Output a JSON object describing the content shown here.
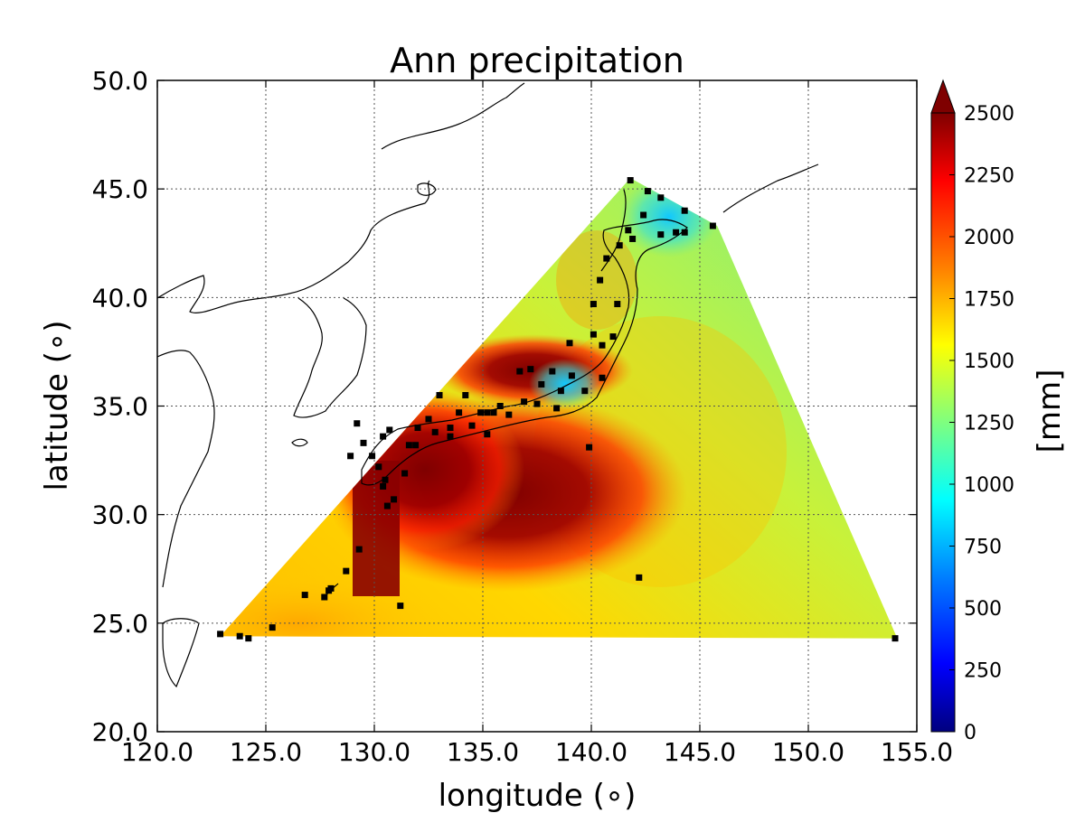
{
  "chart_data": {
    "type": "heatmap",
    "title": "Ann precipitation",
    "xlabel": "longitude (∘)",
    "ylabel": "latitude (∘)",
    "xlim": [
      120,
      155
    ],
    "ylim": [
      20,
      50
    ],
    "x_ticks": [
      "120.0",
      "125.0",
      "130.0",
      "135.0",
      "140.0",
      "145.0",
      "150.0",
      "155.0"
    ],
    "y_ticks": [
      "20.0",
      "25.0",
      "30.0",
      "35.0",
      "40.0",
      "45.0",
      "50.0"
    ],
    "x_tick_values": [
      120,
      125,
      130,
      135,
      140,
      145,
      150,
      155
    ],
    "y_tick_values": [
      20,
      25,
      30,
      35,
      40,
      45,
      50
    ],
    "grid": true,
    "colorbar": {
      "label": "[mm]",
      "min": 0,
      "max": 2500,
      "ticks": [
        "0",
        "250",
        "500",
        "750",
        "1000",
        "1250",
        "1500",
        "1750",
        "2000",
        "2250",
        "2500"
      ],
      "tick_values": [
        0,
        250,
        500,
        750,
        1000,
        1250,
        1500,
        1750,
        2000,
        2250,
        2500
      ],
      "extend": "max",
      "colormap": "jet",
      "colormap_stops": [
        "#00007f",
        "#0000ff",
        "#007fff",
        "#00ffff",
        "#7fff7f",
        "#ffff00",
        "#ff7f00",
        "#ff0000",
        "#7f0000"
      ]
    },
    "interpolated_domain_lonlat": [
      [
        122.9,
        24.4
      ],
      [
        141.8,
        45.5
      ],
      [
        145.8,
        43.3
      ],
      [
        154.1,
        24.3
      ]
    ],
    "stations_lonlat": [
      [
        122.9,
        24.5
      ],
      [
        123.8,
        24.4
      ],
      [
        124.2,
        24.3
      ],
      [
        125.3,
        24.8
      ],
      [
        126.8,
        26.3
      ],
      [
        127.7,
        26.2
      ],
      [
        127.9,
        26.5
      ],
      [
        128.0,
        26.6
      ],
      [
        128.7,
        27.4
      ],
      [
        129.3,
        28.4
      ],
      [
        128.9,
        32.7
      ],
      [
        129.2,
        34.2
      ],
      [
        129.5,
        33.3
      ],
      [
        129.9,
        32.7
      ],
      [
        130.2,
        32.2
      ],
      [
        130.4,
        31.3
      ],
      [
        130.5,
        31.6
      ],
      [
        130.6,
        30.4
      ],
      [
        130.9,
        30.7
      ],
      [
        130.4,
        33.6
      ],
      [
        130.7,
        33.9
      ],
      [
        131.2,
        25.8
      ],
      [
        131.4,
        31.9
      ],
      [
        131.6,
        33.2
      ],
      [
        131.9,
        33.2
      ],
      [
        132.0,
        34.0
      ],
      [
        132.5,
        34.4
      ],
      [
        132.8,
        33.8
      ],
      [
        133.0,
        35.5
      ],
      [
        133.5,
        33.6
      ],
      [
        133.5,
        34.0
      ],
      [
        133.9,
        34.7
      ],
      [
        134.2,
        35.5
      ],
      [
        134.5,
        34.1
      ],
      [
        134.9,
        34.7
      ],
      [
        135.2,
        34.7
      ],
      [
        135.5,
        34.7
      ],
      [
        135.8,
        35.0
      ],
      [
        135.2,
        33.7
      ],
      [
        136.2,
        34.6
      ],
      [
        136.7,
        36.6
      ],
      [
        136.9,
        35.2
      ],
      [
        137.5,
        35.1
      ],
      [
        137.2,
        36.7
      ],
      [
        137.7,
        36.0
      ],
      [
        138.2,
        36.6
      ],
      [
        138.4,
        34.9
      ],
      [
        138.6,
        35.7
      ],
      [
        139.0,
        37.9
      ],
      [
        139.1,
        36.4
      ],
      [
        139.7,
        35.7
      ],
      [
        139.9,
        33.1
      ],
      [
        140.1,
        39.7
      ],
      [
        140.1,
        38.3
      ],
      [
        140.5,
        37.8
      ],
      [
        140.5,
        36.3
      ],
      [
        140.4,
        40.8
      ],
      [
        140.7,
        41.8
      ],
      [
        141.0,
        38.2
      ],
      [
        141.2,
        39.7
      ],
      [
        141.3,
        42.4
      ],
      [
        141.7,
        43.1
      ],
      [
        141.8,
        45.4
      ],
      [
        141.9,
        42.7
      ],
      [
        142.2,
        27.1
      ],
      [
        142.4,
        43.8
      ],
      [
        142.6,
        44.9
      ],
      [
        143.2,
        42.9
      ],
      [
        143.2,
        44.6
      ],
      [
        143.9,
        43.0
      ],
      [
        144.3,
        44.0
      ],
      [
        144.3,
        43.0
      ],
      [
        145.6,
        43.3
      ],
      [
        154.0,
        24.3
      ]
    ]
  }
}
